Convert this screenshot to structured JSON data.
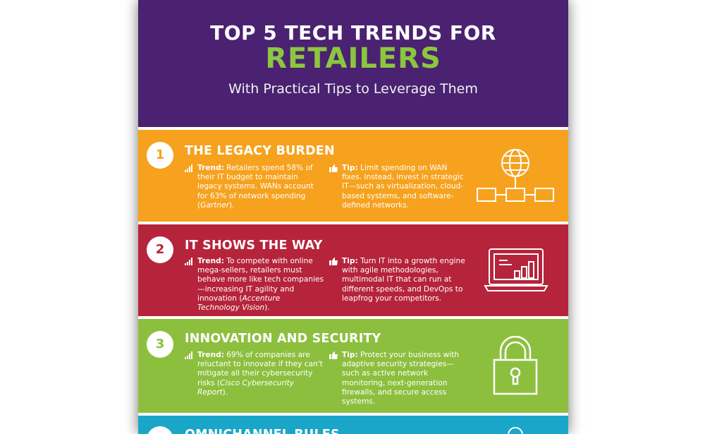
{
  "header": {
    "line1": "TOP 5 TECH TRENDS FOR",
    "line2": "RETAILERS",
    "subtitle": "With Practical Tips to Leverage Them"
  },
  "colors": {
    "header_bg": "#4a2271",
    "accent_green": "#8cc63f",
    "band1": "#f6a21e",
    "band2": "#b5243b",
    "band3": "#8dbf3f",
    "band4": "#1aa6c8"
  },
  "trends": [
    {
      "number": "1",
      "title": "THE LEGACY BURDEN",
      "trend_label": "Trend:",
      "trend_text": "Retailers spend 58% of their IT budget to maintain legacy systems. WANs account for 63% of network spending (",
      "trend_source": "Gartner",
      "trend_end": ").",
      "tip_label": "Tip:",
      "tip_text": "Limit spending on WAN fixes. Instead, invest in strategic IT—such as virtualization, cloud-based systems, and software-defined networks.",
      "icon": "network-globe-icon"
    },
    {
      "number": "2",
      "title": "IT SHOWS THE WAY",
      "trend_label": "Trend:",
      "trend_text": "To compete with online mega-sellers, retailers must behave more like tech companies—increasing IT agility and innovation (",
      "trend_source": "Accenture Technology Vision",
      "trend_end": ").",
      "tip_label": "Tip:",
      "tip_text": "Turn IT into a growth engine with agile methodologies, multimodal IT that can run at different speeds, and DevOps to leapfrog your competitors.",
      "icon": "laptop-chart-icon"
    },
    {
      "number": "3",
      "title": "INNOVATION AND SECURITY",
      "trend_label": "Trend:",
      "trend_text": "69% of companies are reluctant to innovate if they can't mitigate all their cybersecurity risks (",
      "trend_source": "Cisco Cybersecurity Report",
      "trend_end": ").",
      "tip_label": "Tip:",
      "tip_text": "Protect your business with adaptive security strategies—such as active network monitoring, next-generation firewalls, and secure access systems.",
      "icon": "padlock-icon"
    }
  ],
  "partial_band": {
    "title": "OMNICHANNEL RULES"
  }
}
